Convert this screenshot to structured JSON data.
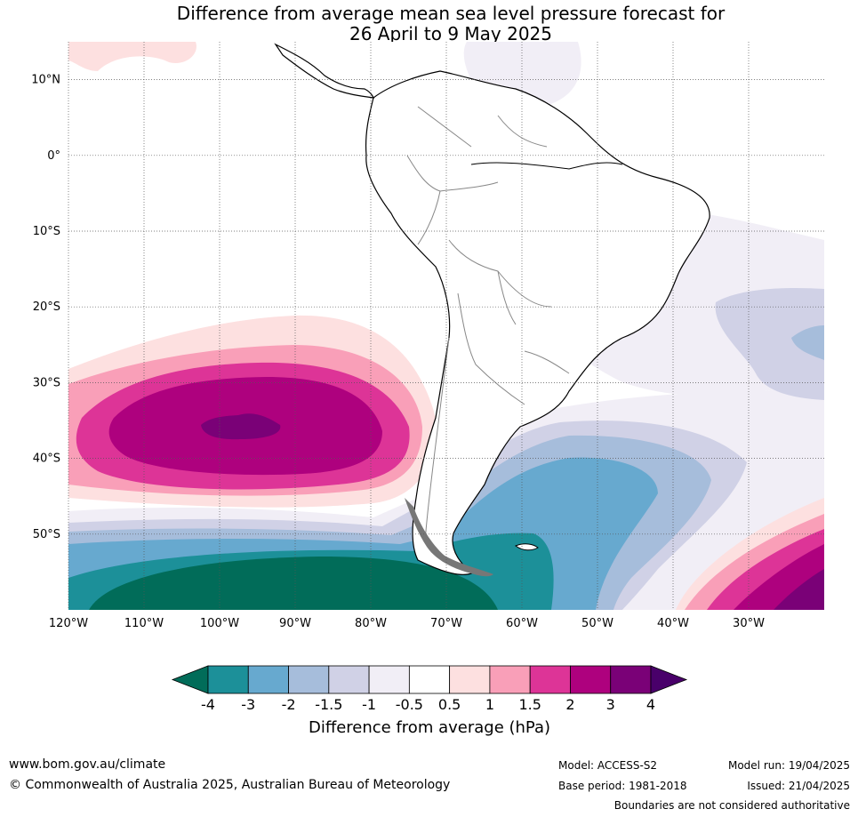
{
  "title": {
    "line1": "Difference from average mean sea level pressure forecast for",
    "line2": "26 April to 9 May 2025"
  },
  "map": {
    "lat_labels": [
      "10°N",
      "0°",
      "10°S",
      "20°S",
      "30°S",
      "40°S",
      "50°S"
    ],
    "lon_labels": [
      "120°W",
      "110°W",
      "100°W",
      "90°W",
      "80°W",
      "70°W",
      "60°W",
      "50°W",
      "40°W",
      "30°W"
    ],
    "extent": {
      "lon": [
        -120,
        -20
      ],
      "lat": [
        -60,
        15
      ]
    }
  },
  "colorbar": {
    "tick_labels": [
      "-4",
      "-3",
      "-2",
      "-1.5",
      "-1",
      "-0.5",
      "0.5",
      "1",
      "1.5",
      "2",
      "3",
      "4"
    ],
    "colors": [
      "#016c59",
      "#1c9099",
      "#67a9cf",
      "#a6bddb",
      "#d0d1e6",
      "#f1eef6",
      "#ffffff",
      "#fde0e0",
      "#f99fb8",
      "#dd3497",
      "#ae017e",
      "#7a0177",
      "#49006a"
    ],
    "title": "Difference from average (hPa)"
  },
  "footer": {
    "url": "www.bom.gov.au/climate",
    "copyright": "© Commonwealth of Australia 2025, Australian Bureau of Meteorology",
    "model": "Model: ACCESS-S2",
    "base_period": "Base period: 1981-2018",
    "model_run": "Model run: 19/04/2025",
    "issued": "Issued: 21/04/2025",
    "boundaries": "Boundaries are not considered authoritative"
  }
}
